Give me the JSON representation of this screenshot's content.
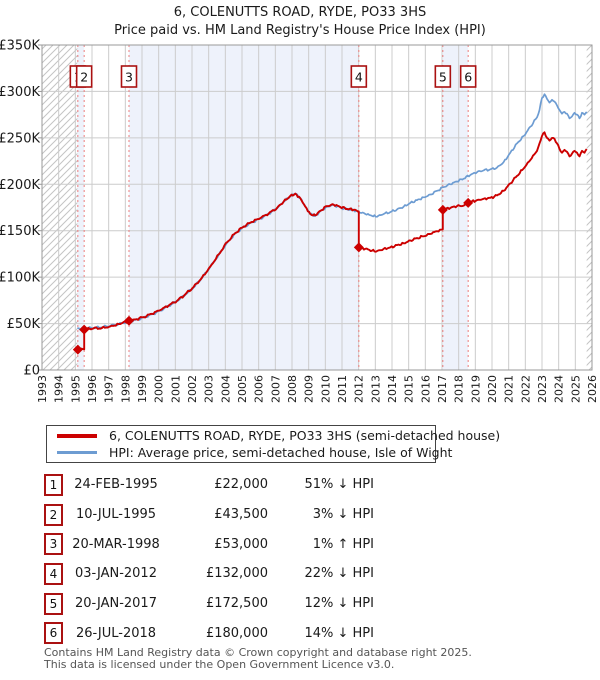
{
  "title": {
    "line1": "6, COLENUTTS ROAD, RYDE, PO33 3HS",
    "line2": "Price paid vs. HM Land Registry's House Price Index (HPI)"
  },
  "legend": {
    "items": [
      {
        "label": "6, COLENUTTS ROAD, RYDE, PO33 3HS (semi-detached house)",
        "color": "#cc0000"
      },
      {
        "label": "HPI: Average price, semi-detached house, Isle of Wight",
        "color": "#6d9cd2"
      }
    ]
  },
  "chart_data": {
    "type": "line",
    "x_axis": {
      "min": 1993,
      "max": 2026,
      "tick_step": 1
    },
    "y_axis": {
      "min": 0,
      "max_k": 350,
      "tick_step_k": 50,
      "tick_labels": [
        "£0",
        "£50K",
        "£100K",
        "£150K",
        "£200K",
        "£250K",
        "£300K",
        "£350K"
      ]
    },
    "hatch_before_year": 1995.12,
    "hatch_after_year": 2025.68,
    "shaded_bands": [
      [
        1995.12,
        1995.53
      ],
      [
        1998.22,
        2012.01
      ],
      [
        2017.05,
        2018.57
      ]
    ],
    "colors": {
      "property": "#cc0000",
      "hpi": "#6d9cd2",
      "sale_line": "#ec7d7d",
      "band": "#eef2fb",
      "grid": "#cccccc",
      "border": "#999999",
      "hatch": "#c4c4c4",
      "num_box_border": "#aa1111"
    },
    "sales": [
      {
        "num": "1",
        "year": 1995.15,
        "price_k": 22,
        "date": "24-FEB-1995"
      },
      {
        "num": "2",
        "year": 1995.53,
        "price_k": 43.5,
        "date": "10-JUL-1995"
      },
      {
        "num": "3",
        "year": 1998.22,
        "price_k": 53,
        "date": "20-MAR-1998"
      },
      {
        "num": "4",
        "year": 2012.01,
        "price_k": 132,
        "date": "03-JAN-2012"
      },
      {
        "num": "5",
        "year": 2017.05,
        "price_k": 172.5,
        "date": "20-JAN-2017"
      },
      {
        "num": "6",
        "year": 2018.57,
        "price_k": 180,
        "date": "26-JUL-2018"
      }
    ],
    "series": [
      {
        "name": "HPI: Average price, semi-detached house, Isle of Wight",
        "color": "#6d9cd2",
        "width": 1.7,
        "phase": 2.1,
        "points": [
          [
            1995.12,
            45
          ],
          [
            1995.6,
            44.5
          ],
          [
            1996.1,
            45.5
          ],
          [
            1996.6,
            46
          ],
          [
            1997.1,
            47.5
          ],
          [
            1997.6,
            49.5
          ],
          [
            1998.1,
            52
          ],
          [
            1998.6,
            54
          ],
          [
            1999.1,
            56.5
          ],
          [
            1999.6,
            60
          ],
          [
            2000.1,
            64
          ],
          [
            2000.6,
            69
          ],
          [
            2001.1,
            74
          ],
          [
            2001.6,
            81
          ],
          [
            2002.1,
            89
          ],
          [
            2002.6,
            99
          ],
          [
            2003.1,
            111
          ],
          [
            2003.6,
            124
          ],
          [
            2004.1,
            137
          ],
          [
            2004.6,
            147
          ],
          [
            2005.1,
            154
          ],
          [
            2005.6,
            159
          ],
          [
            2006.1,
            163
          ],
          [
            2006.6,
            168
          ],
          [
            2007.1,
            174
          ],
          [
            2007.5,
            181
          ],
          [
            2007.9,
            187
          ],
          [
            2008.2,
            190
          ],
          [
            2008.5,
            185
          ],
          [
            2008.8,
            176
          ],
          [
            2009.1,
            168
          ],
          [
            2009.4,
            166
          ],
          [
            2009.7,
            171
          ],
          [
            2010.1,
            176
          ],
          [
            2010.5,
            178
          ],
          [
            2010.9,
            175
          ],
          [
            2011.3,
            173
          ],
          [
            2011.7,
            172
          ],
          [
            2012.0,
            170
          ],
          [
            2012.4,
            168
          ],
          [
            2012.8,
            166
          ],
          [
            2013.1,
            165
          ],
          [
            2013.5,
            168
          ],
          [
            2013.9,
            170
          ],
          [
            2014.3,
            173
          ],
          [
            2014.7,
            176
          ],
          [
            2015.1,
            180
          ],
          [
            2015.5,
            183
          ],
          [
            2015.9,
            186
          ],
          [
            2016.3,
            189
          ],
          [
            2016.7,
            193
          ],
          [
            2017.1,
            197
          ],
          [
            2017.5,
            200
          ],
          [
            2017.9,
            203
          ],
          [
            2018.3,
            206
          ],
          [
            2018.7,
            210
          ],
          [
            2019.1,
            213
          ],
          [
            2019.5,
            215
          ],
          [
            2019.9,
            216
          ],
          [
            2020.3,
            218
          ],
          [
            2020.7,
            224
          ],
          [
            2021.1,
            234
          ],
          [
            2021.5,
            244
          ],
          [
            2021.9,
            252
          ],
          [
            2022.3,
            262
          ],
          [
            2022.7,
            272
          ],
          [
            2022.85,
            280
          ],
          [
            2023.0,
            293
          ],
          [
            2023.15,
            297
          ],
          [
            2023.3,
            292
          ],
          [
            2023.45,
            288
          ],
          [
            2023.6,
            291
          ],
          [
            2023.75,
            289
          ],
          [
            2023.9,
            285
          ],
          [
            2024.05,
            280
          ],
          [
            2024.2,
            276
          ],
          [
            2024.35,
            278
          ],
          [
            2024.5,
            276
          ],
          [
            2024.65,
            271
          ],
          [
            2024.8,
            273
          ],
          [
            2024.95,
            277
          ],
          [
            2025.1,
            275
          ],
          [
            2025.25,
            271
          ],
          [
            2025.4,
            277
          ],
          [
            2025.55,
            275
          ],
          [
            2025.68,
            278
          ]
        ]
      },
      {
        "name": "6, COLENUTTS ROAD, RYDE, PO33 3HS (semi-detached house)",
        "color": "#cc0000",
        "width": 1.9,
        "phase": 0.4,
        "points": [
          [
            1995.12,
            22
          ],
          [
            1995.3,
            22.6
          ],
          [
            1995.53,
            22.3
          ],
          [
            1995.53,
            43.5
          ],
          [
            1996.1,
            44.8
          ],
          [
            1996.6,
            45.2
          ],
          [
            1997.1,
            47
          ],
          [
            1997.6,
            49.5
          ],
          [
            1998.22,
            53
          ],
          [
            1998.6,
            54.5
          ],
          [
            1999.1,
            57
          ],
          [
            1999.6,
            60.5
          ],
          [
            2000.1,
            64.5
          ],
          [
            2000.6,
            69.5
          ],
          [
            2001.1,
            74.5
          ],
          [
            2001.6,
            81.5
          ],
          [
            2002.1,
            89.5
          ],
          [
            2002.6,
            99.5
          ],
          [
            2003.1,
            111.5
          ],
          [
            2003.6,
            124.5
          ],
          [
            2004.1,
            137.5
          ],
          [
            2004.6,
            147.5
          ],
          [
            2005.1,
            154.5
          ],
          [
            2005.6,
            159.5
          ],
          [
            2006.1,
            163.5
          ],
          [
            2006.6,
            168.5
          ],
          [
            2007.1,
            174.5
          ],
          [
            2007.5,
            181.5
          ],
          [
            2007.9,
            187.5
          ],
          [
            2008.2,
            190
          ],
          [
            2008.5,
            185
          ],
          [
            2008.8,
            176
          ],
          [
            2009.1,
            168
          ],
          [
            2009.4,
            166.5
          ],
          [
            2009.7,
            171.5
          ],
          [
            2010.1,
            176.5
          ],
          [
            2010.5,
            178
          ],
          [
            2010.9,
            175.5
          ],
          [
            2011.3,
            173.5
          ],
          [
            2011.7,
            172.5
          ],
          [
            2012.01,
            170.5
          ],
          [
            2012.01,
            132
          ],
          [
            2012.4,
            130.5
          ],
          [
            2012.8,
            128.5
          ],
          [
            2013.1,
            128
          ],
          [
            2013.5,
            130.5
          ],
          [
            2013.9,
            132
          ],
          [
            2014.3,
            134.5
          ],
          [
            2014.7,
            136.5
          ],
          [
            2015.1,
            139.5
          ],
          [
            2015.5,
            142
          ],
          [
            2015.9,
            144
          ],
          [
            2016.3,
            146.5
          ],
          [
            2016.7,
            149.5
          ],
          [
            2017.05,
            151.5
          ],
          [
            2017.05,
            172.5
          ],
          [
            2017.5,
            174.5
          ],
          [
            2017.9,
            176.5
          ],
          [
            2018.3,
            177
          ],
          [
            2018.57,
            178
          ],
          [
            2018.57,
            180
          ],
          [
            2019.1,
            183
          ],
          [
            2019.5,
            184.5
          ],
          [
            2019.9,
            185.5
          ],
          [
            2020.3,
            188
          ],
          [
            2020.7,
            193
          ],
          [
            2021.1,
            201
          ],
          [
            2021.5,
            209
          ],
          [
            2021.9,
            217
          ],
          [
            2022.3,
            226
          ],
          [
            2022.7,
            236
          ],
          [
            2022.85,
            244
          ],
          [
            2023.0,
            252
          ],
          [
            2023.15,
            256
          ],
          [
            2023.3,
            250
          ],
          [
            2023.45,
            247
          ],
          [
            2023.6,
            250
          ],
          [
            2023.75,
            249
          ],
          [
            2023.9,
            244
          ],
          [
            2024.05,
            238
          ],
          [
            2024.2,
            234
          ],
          [
            2024.35,
            237
          ],
          [
            2024.5,
            235
          ],
          [
            2024.65,
            230
          ],
          [
            2024.8,
            233
          ],
          [
            2024.95,
            236
          ],
          [
            2025.1,
            234
          ],
          [
            2025.25,
            230
          ],
          [
            2025.4,
            236
          ],
          [
            2025.55,
            234
          ],
          [
            2025.68,
            238
          ]
        ]
      }
    ]
  },
  "table": {
    "rows": [
      {
        "num": "1",
        "date": "24-FEB-1995",
        "price": "£22,000",
        "delta": "51% ↓ HPI"
      },
      {
        "num": "2",
        "date": "10-JUL-1995",
        "price": "£43,500",
        "delta": "3% ↓ HPI"
      },
      {
        "num": "3",
        "date": "20-MAR-1998",
        "price": "£53,000",
        "delta": "1% ↑ HPI"
      },
      {
        "num": "4",
        "date": "03-JAN-2012",
        "price": "£132,000",
        "delta": "22% ↓ HPI"
      },
      {
        "num": "5",
        "date": "20-JAN-2017",
        "price": "£172,500",
        "delta": "12% ↓ HPI"
      },
      {
        "num": "6",
        "date": "26-JUL-2018",
        "price": "£180,000",
        "delta": "14% ↓ HPI"
      }
    ]
  },
  "footer": {
    "line1": "Contains HM Land Registry data © Crown copyright and database right 2025.",
    "line2": "This data is licensed under the Open Government Licence v3.0."
  }
}
